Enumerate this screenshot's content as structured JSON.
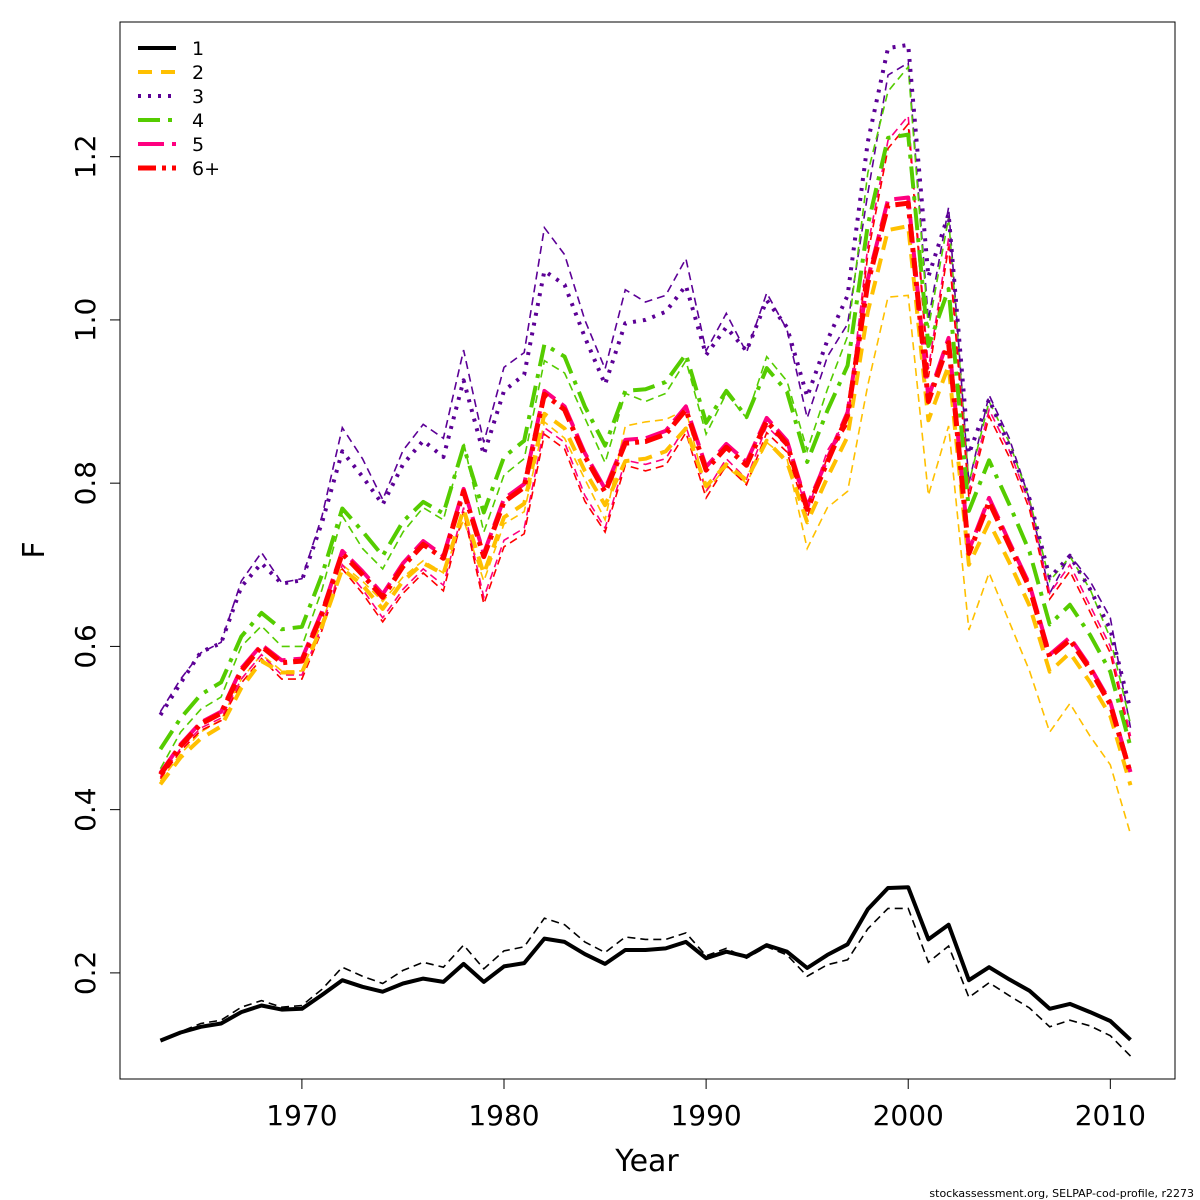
{
  "chart_data": {
    "type": "line",
    "xlabel": "Year",
    "ylabel": "F",
    "xlim": [
      1961,
      2013.2
    ],
    "ylim": [
      0.07,
      1.365
    ],
    "xticks": [
      1970,
      1980,
      1990,
      2000,
      2010
    ],
    "yticks": [
      0.2,
      0.4,
      0.6,
      0.8,
      1.0,
      1.2
    ],
    "ytick_labels": [
      "0.2",
      "0.4",
      "0.6",
      "0.8",
      "1.0",
      "1.2"
    ],
    "legend_position": "top-left",
    "grid": false,
    "credit": "stockassessment.org, SELPAP-cod-profile, r2273",
    "x": [
      1963,
      1964,
      1965,
      1966,
      1967,
      1968,
      1969,
      1970,
      1971,
      1972,
      1973,
      1974,
      1975,
      1976,
      1977,
      1978,
      1979,
      1980,
      1981,
      1982,
      1983,
      1984,
      1985,
      1986,
      1987,
      1988,
      1989,
      1990,
      1991,
      1992,
      1993,
      1994,
      1995,
      1996,
      1997,
      1998,
      1999,
      2000,
      2001,
      2002,
      2003,
      2004,
      2005,
      2006,
      2007,
      2008,
      2009,
      2010,
      2011
    ],
    "series": [
      {
        "name": "1",
        "color": "#000000",
        "width": 4,
        "dash": "",
        "values": [
          0.117,
          0.127,
          0.134,
          0.138,
          0.152,
          0.16,
          0.155,
          0.156,
          0.173,
          0.191,
          0.183,
          0.177,
          0.187,
          0.193,
          0.189,
          0.211,
          0.189,
          0.208,
          0.212,
          0.242,
          0.238,
          0.223,
          0.211,
          0.228,
          0.228,
          0.23,
          0.238,
          0.218,
          0.226,
          0.22,
          0.234,
          0.226,
          0.206,
          0.222,
          0.235,
          0.278,
          0.304,
          0.305,
          0.241,
          0.259,
          0.191,
          0.207,
          0.192,
          0.178,
          0.156,
          0.162,
          0.152,
          0.141,
          0.118
        ],
        "compare": [
          0.118,
          0.128,
          0.138,
          0.142,
          0.158,
          0.166,
          0.158,
          0.16,
          0.18,
          0.207,
          0.196,
          0.187,
          0.203,
          0.213,
          0.207,
          0.234,
          0.205,
          0.227,
          0.232,
          0.267,
          0.259,
          0.238,
          0.225,
          0.244,
          0.241,
          0.241,
          0.249,
          0.221,
          0.23,
          0.218,
          0.232,
          0.222,
          0.196,
          0.21,
          0.216,
          0.254,
          0.279,
          0.279,
          0.213,
          0.233,
          0.17,
          0.188,
          0.172,
          0.157,
          0.134,
          0.142,
          0.135,
          0.123,
          0.098
        ]
      },
      {
        "name": "2",
        "color": "#ffc000",
        "width": 4,
        "dash": "14,9",
        "values": [
          0.431,
          0.464,
          0.487,
          0.502,
          0.549,
          0.582,
          0.568,
          0.568,
          0.625,
          0.695,
          0.675,
          0.646,
          0.68,
          0.702,
          0.689,
          0.768,
          0.689,
          0.758,
          0.775,
          0.885,
          0.867,
          0.815,
          0.773,
          0.827,
          0.83,
          0.839,
          0.867,
          0.796,
          0.823,
          0.804,
          0.852,
          0.826,
          0.752,
          0.807,
          0.857,
          1.01,
          1.11,
          1.115,
          0.877,
          0.944,
          0.7,
          0.752,
          0.703,
          0.65,
          0.569,
          0.592,
          0.556,
          0.515,
          0.43
        ],
        "compare": [
          0.435,
          0.468,
          0.495,
          0.51,
          0.56,
          0.59,
          0.57,
          0.57,
          0.63,
          0.7,
          0.68,
          0.655,
          0.685,
          0.705,
          0.69,
          0.755,
          0.68,
          0.75,
          0.765,
          0.875,
          0.855,
          0.805,
          0.755,
          0.87,
          0.875,
          0.878,
          0.89,
          0.79,
          0.82,
          0.8,
          0.85,
          0.83,
          0.72,
          0.77,
          0.79,
          0.92,
          1.028,
          1.03,
          0.785,
          0.87,
          0.62,
          0.69,
          0.63,
          0.57,
          0.495,
          0.53,
          0.49,
          0.455,
          0.37
        ]
      },
      {
        "name": "3",
        "color": "#5c0096",
        "width": 4,
        "dash": "3,7",
        "values": [
          0.516,
          0.555,
          0.593,
          0.604,
          0.673,
          0.702,
          0.677,
          0.681,
          0.752,
          0.839,
          0.808,
          0.774,
          0.823,
          0.852,
          0.832,
          0.926,
          0.835,
          0.913,
          0.933,
          1.06,
          1.043,
          0.979,
          0.921,
          0.996,
          1.0,
          1.01,
          1.042,
          0.957,
          0.991,
          0.962,
          1.024,
          0.991,
          0.906,
          0.975,
          1.03,
          1.218,
          1.333,
          1.337,
          1.053,
          1.13,
          0.836,
          0.903,
          0.845,
          0.781,
          0.684,
          0.711,
          0.67,
          0.621,
          0.522
        ],
        "compare": [
          0.52,
          0.56,
          0.592,
          0.605,
          0.68,
          0.715,
          0.678,
          0.683,
          0.76,
          0.868,
          0.83,
          0.78,
          0.84,
          0.872,
          0.855,
          0.963,
          0.85,
          0.942,
          0.96,
          1.113,
          1.08,
          1.0,
          0.94,
          1.037,
          1.022,
          1.03,
          1.075,
          0.962,
          1.008,
          0.96,
          1.033,
          0.988,
          0.88,
          0.955,
          0.995,
          1.155,
          1.3,
          1.315,
          1.0,
          1.138,
          0.8,
          0.908,
          0.855,
          0.78,
          0.665,
          0.712,
          0.68,
          0.635,
          0.5
        ]
      },
      {
        "name": "4",
        "color": "#55cc00",
        "width": 4,
        "dash": "22,8,4,8",
        "values": [
          0.474,
          0.512,
          0.541,
          0.556,
          0.612,
          0.641,
          0.621,
          0.624,
          0.688,
          0.769,
          0.741,
          0.711,
          0.753,
          0.777,
          0.763,
          0.845,
          0.764,
          0.832,
          0.852,
          0.97,
          0.955,
          0.894,
          0.846,
          0.913,
          0.915,
          0.924,
          0.958,
          0.874,
          0.913,
          0.881,
          0.941,
          0.912,
          0.826,
          0.889,
          0.944,
          1.116,
          1.223,
          1.227,
          0.968,
          1.038,
          0.766,
          0.828,
          0.774,
          0.716,
          0.627,
          0.651,
          0.614,
          0.569,
          0.477
        ],
        "compare": [
          0.45,
          0.495,
          0.523,
          0.538,
          0.6,
          0.625,
          0.6,
          0.6,
          0.67,
          0.76,
          0.72,
          0.695,
          0.74,
          0.77,
          0.755,
          0.85,
          0.74,
          0.81,
          0.83,
          0.95,
          0.935,
          0.88,
          0.825,
          0.91,
          0.9,
          0.91,
          0.95,
          0.86,
          0.91,
          0.88,
          0.955,
          0.925,
          0.84,
          0.915,
          0.98,
          1.18,
          1.28,
          1.31,
          0.99,
          1.125,
          0.8,
          0.9,
          0.85,
          0.78,
          0.68,
          0.71,
          0.67,
          0.61,
          0.505
        ]
      },
      {
        "name": "5",
        "color": "#ff0080",
        "width": 4,
        "dash": "26,8",
        "values": [
          0.445,
          0.48,
          0.507,
          0.52,
          0.573,
          0.602,
          0.583,
          0.585,
          0.643,
          0.717,
          0.692,
          0.664,
          0.702,
          0.729,
          0.711,
          0.793,
          0.714,
          0.781,
          0.799,
          0.913,
          0.894,
          0.837,
          0.793,
          0.853,
          0.855,
          0.864,
          0.894,
          0.82,
          0.848,
          0.826,
          0.88,
          0.852,
          0.772,
          0.83,
          0.887,
          1.05,
          1.147,
          1.15,
          0.905,
          0.978,
          0.718,
          0.782,
          0.728,
          0.676,
          0.59,
          0.611,
          0.575,
          0.532,
          0.446
        ],
        "compare": [
          0.44,
          0.475,
          0.5,
          0.512,
          0.56,
          0.59,
          0.565,
          0.565,
          0.625,
          0.7,
          0.67,
          0.635,
          0.67,
          0.695,
          0.675,
          0.77,
          0.66,
          0.73,
          0.745,
          0.868,
          0.85,
          0.785,
          0.745,
          0.828,
          0.823,
          0.83,
          0.87,
          0.79,
          0.83,
          0.805,
          0.87,
          0.845,
          0.765,
          0.84,
          0.88,
          1.09,
          1.22,
          1.25,
          0.94,
          1.1,
          0.79,
          0.89,
          0.84,
          0.775,
          0.665,
          0.7,
          0.65,
          0.6,
          0.49
        ]
      },
      {
        "name": "6+",
        "color": "#ff0000",
        "width": 5,
        "dash": "18,6,4,6",
        "values": [
          0.443,
          0.478,
          0.505,
          0.518,
          0.57,
          0.6,
          0.58,
          0.582,
          0.64,
          0.714,
          0.688,
          0.66,
          0.698,
          0.725,
          0.708,
          0.79,
          0.71,
          0.777,
          0.795,
          0.909,
          0.89,
          0.833,
          0.789,
          0.849,
          0.851,
          0.86,
          0.89,
          0.816,
          0.844,
          0.822,
          0.876,
          0.848,
          0.768,
          0.826,
          0.883,
          1.045,
          1.14,
          1.143,
          0.9,
          0.972,
          0.714,
          0.777,
          0.724,
          0.672,
          0.587,
          0.608,
          0.572,
          0.529,
          0.444
        ],
        "compare": [
          0.438,
          0.472,
          0.497,
          0.509,
          0.555,
          0.585,
          0.56,
          0.56,
          0.62,
          0.695,
          0.665,
          0.63,
          0.665,
          0.69,
          0.668,
          0.765,
          0.652,
          0.722,
          0.738,
          0.86,
          0.842,
          0.778,
          0.74,
          0.822,
          0.815,
          0.822,
          0.862,
          0.782,
          0.822,
          0.798,
          0.862,
          0.838,
          0.758,
          0.832,
          0.872,
          1.08,
          1.21,
          1.24,
          0.93,
          1.09,
          0.782,
          0.882,
          0.832,
          0.768,
          0.658,
          0.692,
          0.642,
          0.592,
          0.482
        ]
      }
    ]
  }
}
